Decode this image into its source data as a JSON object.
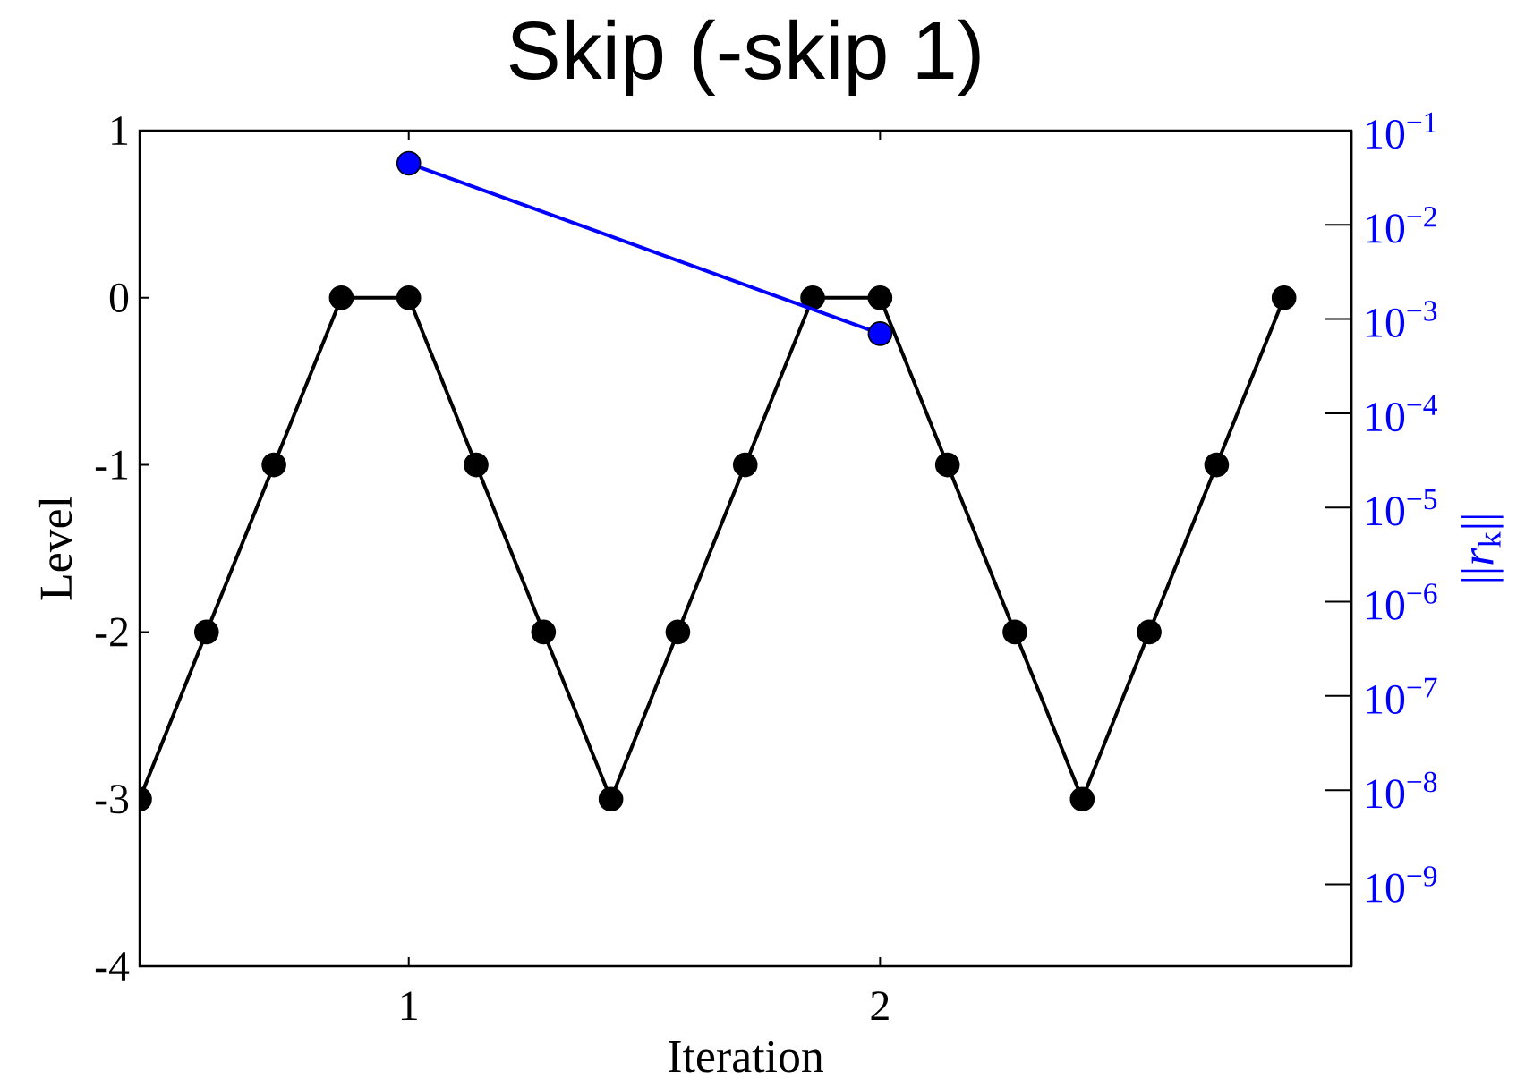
{
  "chart_data": {
    "type": "line",
    "title": "Skip (-skip 1)",
    "xlabel": "Iteration",
    "ylabel": "Level",
    "y2label": "||*r*$_{k}$||",
    "x": [
      0.429,
      0.571,
      0.714,
      0.857,
      1,
      1.143,
      1.286,
      1.429,
      1.571,
      1.714,
      1.857,
      2,
      2.143,
      2.286,
      2.429,
      2.571,
      2.714,
      2.857
    ],
    "series": [
      {
        "color": "#000000",
        "values": [
          -3,
          -2,
          -1,
          0,
          0,
          -1,
          -2,
          -3,
          -2,
          -1,
          0,
          0,
          -1,
          -2,
          -3,
          -2,
          -1,
          0
        ]
      },
      {
        "color": "#0000ff",
        "axis": "y2",
        "x": [
          1,
          2
        ],
        "values": [
          0.045,
          0.0007
        ]
      }
    ],
    "xlim": [
      0.429,
      3
    ],
    "xticks": [
      1,
      2
    ],
    "ylim": [
      -4,
      1
    ],
    "yticks": [
      -4,
      -3,
      -2,
      -1,
      0,
      1
    ],
    "y2lim": [
      1.35e-10,
      0.1
    ],
    "y2ticks": [
      {
        "value": 1e-09,
        "label": "10$^{−9}$"
      },
      {
        "value": 1e-08,
        "label": "10$^{−8}$"
      },
      {
        "value": 1e-07,
        "label": "10$^{−7}$"
      },
      {
        "value": 1e-06,
        "label": "10$^{−6}$"
      },
      {
        "value": 1e-05,
        "label": "10$^{−5}$"
      },
      {
        "value": 0.0001,
        "label": "10$^{−4}$"
      },
      {
        "value": 0.001,
        "label": "10$^{−3}$"
      },
      {
        "value": 0.01,
        "label": "10$^{−2}$"
      },
      {
        "value": 0.1,
        "label": "10$^{−1}$"
      }
    ],
    "log": "y2",
    "marker": "circle"
  }
}
